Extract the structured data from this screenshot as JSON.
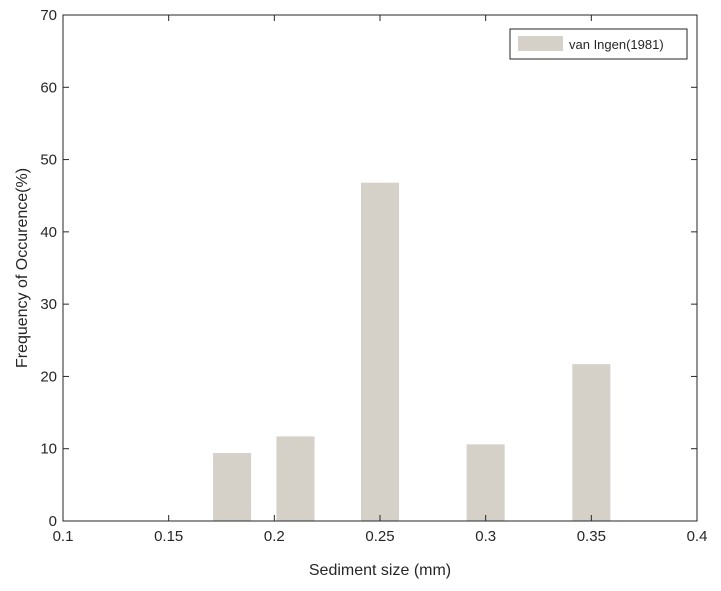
{
  "chart_data": {
    "type": "bar",
    "x": [
      0.18,
      0.21,
      0.25,
      0.3,
      0.35
    ],
    "series": [
      {
        "name": "van Ingen(1981)",
        "values": [
          9.4,
          11.7,
          46.8,
          10.6,
          21.7
        ],
        "color": "#d5d1c9"
      }
    ],
    "xlabel": "Sediment size (mm)",
    "ylabel": "Frequency of Occurence(%)",
    "xlim": [
      0.1,
      0.4
    ],
    "ylim": [
      0,
      70
    ],
    "xticks": [
      0.1,
      0.15,
      0.2,
      0.25,
      0.3,
      0.35,
      0.4
    ],
    "xtick_labels": [
      "0.1",
      "0.15",
      "0.2",
      "0.25",
      "0.3",
      "0.35",
      "0.4"
    ],
    "yticks": [
      0,
      10,
      20,
      30,
      40,
      50,
      60,
      70
    ],
    "ytick_labels": [
      "0",
      "10",
      "20",
      "30",
      "40",
      "50",
      "60",
      "70"
    ],
    "bar_width": 0.018,
    "grid": false,
    "box": true,
    "legend_position": "top-right"
  }
}
